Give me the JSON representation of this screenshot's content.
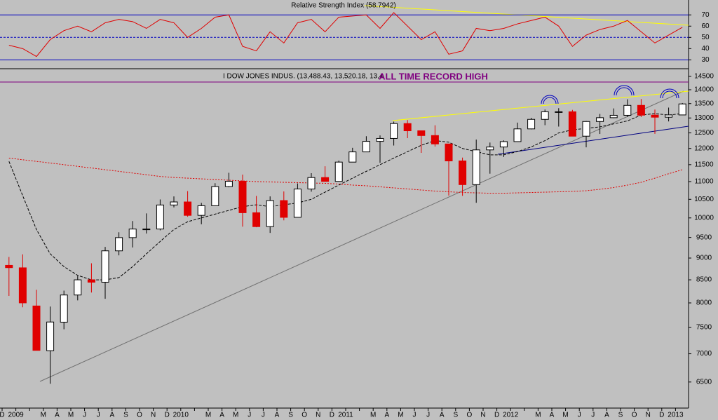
{
  "chart_data": [
    {
      "type": "line",
      "title": "Relative Strength Index (58.7942)",
      "color": "#e00000",
      "values": [
        43,
        40,
        33,
        48,
        56,
        60,
        55,
        63,
        66,
        64,
        58,
        66,
        63,
        50,
        58,
        68,
        70,
        42,
        38,
        55,
        45,
        63,
        66,
        55,
        68,
        69,
        70,
        58,
        72,
        60,
        48,
        55,
        35,
        38,
        58,
        56,
        58,
        62,
        65,
        68,
        60,
        42,
        52,
        57,
        60,
        65,
        55,
        45,
        52,
        59
      ],
      "ylim": [
        24,
        82
      ],
      "yticks": [
        30,
        40,
        50,
        60,
        70
      ]
    },
    {
      "type": "candlestick",
      "title": "I DOW JONES INDUS. (13,488.43, 13,520.18, 13,4",
      "annotation": "ALL TIME RECORD HIGH",
      "log_scale": true,
      "up_color": "#ffffff",
      "down_color": "#e00000",
      "categories": [
        "D",
        "2009",
        null,
        "M",
        "A",
        "M",
        "J",
        "J",
        "A",
        "S",
        "O",
        "N",
        "D",
        "2010",
        null,
        "M",
        "A",
        "M",
        "J",
        "J",
        "A",
        "S",
        "O",
        "N",
        "D",
        "2011",
        null,
        "M",
        "A",
        "M",
        "J",
        "J",
        "A",
        "S",
        "O",
        "N",
        "D",
        "2012",
        null,
        "M",
        "A",
        "M",
        "J",
        "J",
        "A",
        "S",
        "O",
        "N",
        "D",
        "2013"
      ],
      "open": [
        8829,
        8772,
        7936,
        7057,
        7606,
        8168,
        8500,
        8447,
        9172,
        9496,
        9712,
        9713,
        10345,
        10428,
        10067,
        10325,
        10857,
        11009,
        10137,
        9774,
        10466,
        10015,
        10788,
        11118,
        11006,
        11578,
        11892,
        12226,
        12320,
        12811,
        12570,
        12414,
        12143,
        11614,
        10913,
        11955,
        12046,
        12218,
        12633,
        12952,
        13212,
        13214,
        12393,
        12880,
        13009,
        13091,
        13437,
        13096,
        13026,
        13104
      ],
      "high": [
        9026,
        9088,
        8281,
        7924,
        8262,
        8588,
        8877,
        9268,
        9630,
        9918,
        10119,
        10496,
        10580,
        10729,
        10402,
        10954,
        11258,
        11205,
        10594,
        10581,
        10720,
        10948,
        11245,
        11452,
        11625,
        12020,
        12392,
        12419,
        12876,
        12929,
        12570,
        12753,
        12143,
        11716,
        12284,
        12188,
        12258,
        12841,
        13006,
        13290,
        13338,
        13279,
        12899,
        13139,
        13330,
        13653,
        13662,
        13290,
        13359,
        13520
      ],
      "low": [
        8149,
        7909,
        7113,
        6470,
        7465,
        8054,
        8221,
        8087,
        9064,
        9253,
        9598,
        9679,
        10280,
        10030,
        9835,
        10325,
        10837,
        9774,
        9758,
        9614,
        9936,
        10015,
        10712,
        11007,
        11006,
        11578,
        11892,
        11555,
        12093,
        12329,
        11862,
        12061,
        10604,
        10597,
        10405,
        11231,
        11735,
        12218,
        12618,
        12756,
        12710,
        12392,
        12036,
        12465,
        12995,
        13035,
        13032,
        12471,
        12883,
        13104
      ],
      "close": [
        8776,
        8001,
        7063,
        7609,
        8168,
        8500,
        8447,
        9172,
        9496,
        9712,
        9713,
        10345,
        10428,
        10067,
        10325,
        10857,
        11009,
        10137,
        9774,
        10466,
        10015,
        10788,
        11118,
        11006,
        11578,
        11892,
        12226,
        12320,
        12811,
        12570,
        12414,
        12143,
        11614,
        10913,
        11955,
        12046,
        12218,
        12633,
        12952,
        13212,
        13214,
        12393,
        12880,
        13009,
        13091,
        13437,
        13096,
        13026,
        13104,
        13488
      ],
      "moving_averages": [
        {
          "color": "#e00000",
          "values": [
            11700,
            11650,
            11600,
            11550,
            11500,
            11450,
            11400,
            11350,
            11300,
            11250,
            11200,
            11150,
            11120,
            11100,
            11080,
            11060,
            11040,
            11020,
            11000,
            10990,
            10980,
            10970,
            10960,
            10950,
            10930,
            10900,
            10880,
            10850,
            10820,
            10790,
            10760,
            10730,
            10710,
            10690,
            10680,
            10670,
            10670,
            10680,
            10690,
            10700,
            10710,
            10720,
            10740,
            10780,
            10830,
            10900,
            10980,
            11100,
            11230,
            11350
          ]
        },
        {
          "color": "#000000",
          "values": [
            11600,
            10600,
            9700,
            9100,
            8800,
            8600,
            8500,
            8500,
            8550,
            8800,
            9100,
            9400,
            9700,
            9900,
            10000,
            10100,
            10200,
            10300,
            10350,
            10300,
            10350,
            10400,
            10500,
            10700,
            10900,
            11100,
            11300,
            11500,
            11700,
            11900,
            12100,
            12250,
            12200,
            12000,
            11900,
            11800,
            11800,
            11900,
            12050,
            12250,
            12500,
            12600,
            12650,
            12700,
            12800,
            12900,
            13100,
            13150,
            13100,
            13150
          ]
        }
      ],
      "ylim": [
        6070,
        14740
      ],
      "yticks": [
        6500,
        7000,
        7500,
        8000,
        8500,
        9000,
        9500,
        10000,
        10500,
        11000,
        11500,
        12000,
        12500,
        13000,
        13500,
        14000,
        14500
      ]
    }
  ]
}
